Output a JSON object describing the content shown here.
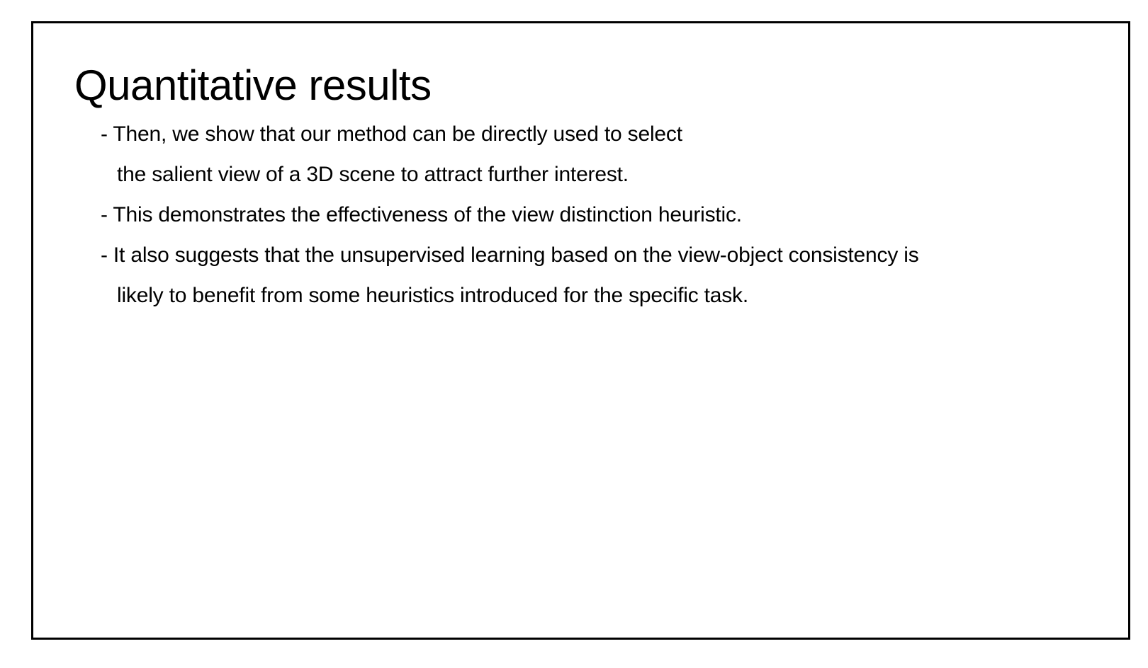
{
  "slide": {
    "title": "Quantitative results",
    "lines": [
      "- Then, we show that our method can be directly used to select",
      "the salient view of a 3D scene to attract further interest.",
      "- This demonstrates the effectiveness of the view distinction heuristic.",
      "- It also suggests that the unsupervised learning based on the view-object consistency is",
      "likely to benefit from some heuristics introduced for the specific task."
    ]
  },
  "colors": {
    "background": "#ffffff",
    "border": "#000000",
    "text": "#000000"
  }
}
